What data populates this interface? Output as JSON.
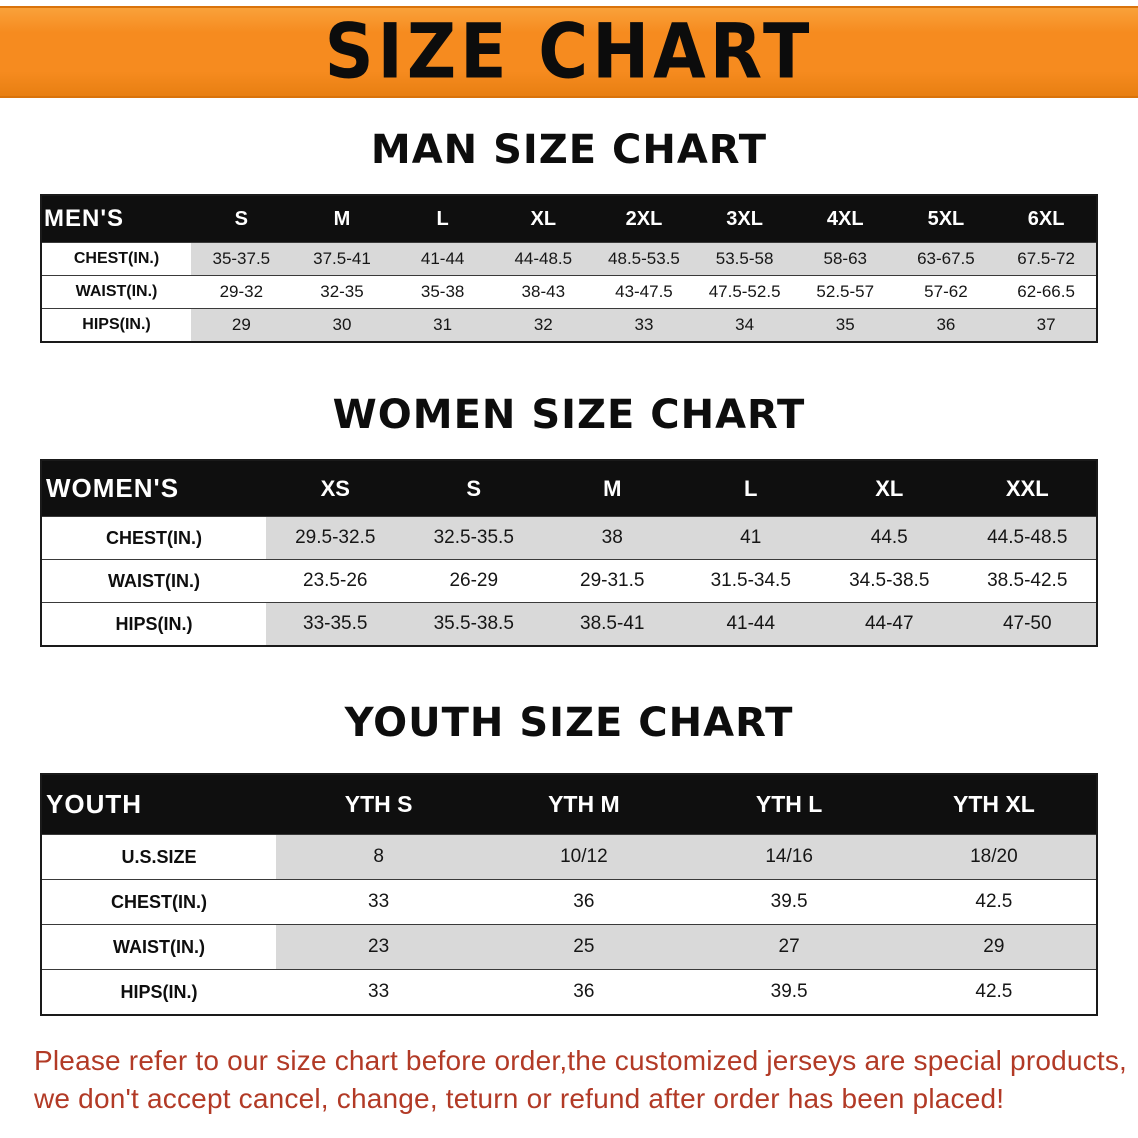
{
  "banner": {
    "title": "SIZE CHART"
  },
  "colors": {
    "banner_bg": "#F68B1F",
    "table_header_bg": "#0F0F0F",
    "alt_row_bg": "#D9D9D9",
    "note_text": "#B23A26"
  },
  "sections": [
    {
      "id": "men",
      "heading": "MAN SIZE CHART",
      "table": {
        "label": "MEN'S",
        "columns": [
          "S",
          "M",
          "L",
          "XL",
          "2XL",
          "3XL",
          "4XL",
          "5XL",
          "6XL"
        ],
        "rows": [
          {
            "label": "CHEST(IN.)",
            "values": [
              "35-37.5",
              "37.5-41",
              "41-44",
              "44-48.5",
              "48.5-53.5",
              "53.5-58",
              "58-63",
              "63-67.5",
              "67.5-72"
            ]
          },
          {
            "label": "WAIST(IN.)",
            "values": [
              "29-32",
              "32-35",
              "35-38",
              "38-43",
              "43-47.5",
              "47.5-52.5",
              "52.5-57",
              "57-62",
              "62-66.5"
            ]
          },
          {
            "label": "HIPS(IN.)",
            "values": [
              "29",
              "30",
              "31",
              "32",
              "33",
              "34",
              "35",
              "36",
              "37"
            ]
          }
        ]
      }
    },
    {
      "id": "women",
      "heading": "WOMEN SIZE CHART",
      "table": {
        "label": "WOMEN'S",
        "columns": [
          "XS",
          "S",
          "M",
          "L",
          "XL",
          "XXL"
        ],
        "rows": [
          {
            "label": "CHEST(IN.)",
            "values": [
              "29.5-32.5",
              "32.5-35.5",
              "38",
              "41",
              "44.5",
              "44.5-48.5"
            ]
          },
          {
            "label": "WAIST(IN.)",
            "values": [
              "23.5-26",
              "26-29",
              "29-31.5",
              "31.5-34.5",
              "34.5-38.5",
              "38.5-42.5"
            ]
          },
          {
            "label": "HIPS(IN.)",
            "values": [
              "33-35.5",
              "35.5-38.5",
              "38.5-41",
              "41-44",
              "44-47",
              "47-50"
            ]
          }
        ]
      }
    },
    {
      "id": "youth",
      "heading": "YOUTH SIZE CHART",
      "table": {
        "label": "YOUTH",
        "columns": [
          "YTH S",
          "YTH M",
          "YTH L",
          "YTH XL"
        ],
        "rows": [
          {
            "label": "U.S.SIZE",
            "values": [
              "8",
              "10/12",
              "14/16",
              "18/20"
            ]
          },
          {
            "label": "CHEST(IN.)",
            "values": [
              "33",
              "36",
              "39.5",
              "42.5"
            ]
          },
          {
            "label": "WAIST(IN.)",
            "values": [
              "23",
              "25",
              "27",
              "29"
            ]
          },
          {
            "label": "HIPS(IN.)",
            "values": [
              "33",
              "36",
              "39.5",
              "42.5"
            ]
          }
        ]
      }
    }
  ],
  "note": {
    "line1": "Please refer to our size chart before order,the customized jerseys are special products,",
    "line2": "we don't accept cancel, change, teturn or refund after order has been placed!"
  }
}
